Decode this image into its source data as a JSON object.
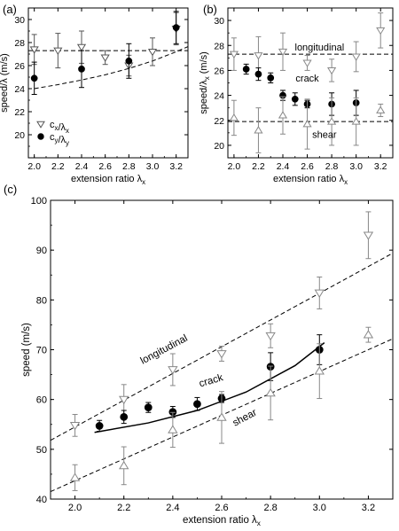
{
  "chart_data": [
    {
      "panel": "(a)",
      "type": "scatter",
      "xlabel": "extension ratio λ",
      "xlabel_sub": "x",
      "ylabel": "speed/λ (m/s)",
      "xlim": [
        1.95,
        3.3
      ],
      "ylim": [
        18,
        31
      ],
      "xticks": [
        2.0,
        2.2,
        2.4,
        2.6,
        2.8,
        3.0,
        3.2
      ],
      "yticks": [
        20,
        22,
        24,
        26,
        28,
        30
      ],
      "legend_position": "lower-left",
      "series": [
        {
          "name": "c_x/λ_x",
          "marker": "triangle-down-open",
          "color": "#555555",
          "points": [
            {
              "x": 2.0,
              "y": 27.4,
              "err": 1.3
            },
            {
              "x": 2.2,
              "y": 27.3,
              "err": 1.5
            },
            {
              "x": 2.4,
              "y": 27.6,
              "err": 1.4
            },
            {
              "x": 2.6,
              "y": 26.7,
              "err": 0.6
            },
            {
              "x": 2.8,
              "y": 26.0,
              "err": 0.9
            },
            {
              "x": 3.0,
              "y": 27.2,
              "err": 1.2
            },
            {
              "x": 3.2,
              "y": 29.2,
              "err": 1.4
            }
          ]
        },
        {
          "name": "c_y/λ_y",
          "marker": "circle-filled",
          "color": "#000000",
          "points": [
            {
              "x": 2.0,
              "y": 24.9,
              "err": 1.4
            },
            {
              "x": 2.4,
              "y": 25.7,
              "err": 1.6
            },
            {
              "x": 2.8,
              "y": 26.4,
              "err": 1.5
            },
            {
              "x": 3.2,
              "y": 29.3,
              "err": 1.4
            }
          ]
        }
      ],
      "reference_lines": [
        {
          "style": "dashed",
          "kind": "horizontal",
          "y": 27.3
        },
        {
          "style": "dashed",
          "kind": "curve",
          "x": [
            2.0,
            2.2,
            2.4,
            2.6,
            2.8,
            3.0,
            3.2,
            3.3
          ],
          "y": [
            24.0,
            24.35,
            24.75,
            25.2,
            25.75,
            26.4,
            27.2,
            27.65
          ]
        }
      ]
    },
    {
      "panel": "(b)",
      "type": "scatter",
      "xlabel": "extension ratio λ",
      "xlabel_sub": "x",
      "ylabel": "speed/λ",
      "ylabel_sub": "x",
      "ylabel_unit": " (m/s)",
      "xlim": [
        1.95,
        3.3
      ],
      "ylim": [
        19,
        31
      ],
      "xticks": [
        2.0,
        2.2,
        2.4,
        2.6,
        2.8,
        3.0,
        3.2
      ],
      "yticks": [
        20,
        22,
        24,
        26,
        28,
        30
      ],
      "annotations": [
        {
          "text": "longitudinal",
          "x": 2.7,
          "y": 27.6
        },
        {
          "text": "crack",
          "x": 2.6,
          "y": 25.1
        },
        {
          "text": "shear",
          "x": 2.74,
          "y": 20.6
        }
      ],
      "series": [
        {
          "name": "longitudinal",
          "marker": "triangle-down-open",
          "color": "#888888",
          "points": [
            {
              "x": 2.0,
              "y": 27.3,
              "err": 1.3
            },
            {
              "x": 2.2,
              "y": 27.2,
              "err": 1.5
            },
            {
              "x": 2.4,
              "y": 27.5,
              "err": 1.5
            },
            {
              "x": 2.6,
              "y": 26.6,
              "err": 0.6
            },
            {
              "x": 2.8,
              "y": 26.0,
              "err": 0.9
            },
            {
              "x": 3.0,
              "y": 27.1,
              "err": 1.2
            },
            {
              "x": 3.2,
              "y": 29.2,
              "err": 1.4
            }
          ]
        },
        {
          "name": "crack",
          "marker": "circle-filled",
          "color": "#000000",
          "points": [
            {
              "x": 2.1,
              "y": 26.1,
              "err": 0.4
            },
            {
              "x": 2.2,
              "y": 25.7,
              "err": 0.5
            },
            {
              "x": 2.3,
              "y": 25.4,
              "err": 0.4
            },
            {
              "x": 2.4,
              "y": 24.0,
              "err": 0.4
            },
            {
              "x": 2.5,
              "y": 23.7,
              "err": 0.5
            },
            {
              "x": 2.6,
              "y": 23.3,
              "err": 0.3
            },
            {
              "x": 2.8,
              "y": 23.3,
              "err": 0.9
            },
            {
              "x": 3.0,
              "y": 23.4,
              "err": 1.0
            }
          ]
        },
        {
          "name": "shear",
          "marker": "triangle-up-open",
          "color": "#888888",
          "points": [
            {
              "x": 2.0,
              "y": 22.2,
              "err": 1.4
            },
            {
              "x": 2.2,
              "y": 21.2,
              "err": 1.8
            },
            {
              "x": 2.4,
              "y": 22.4,
              "err": 1.5
            },
            {
              "x": 2.6,
              "y": 21.7,
              "err": 2.0
            },
            {
              "x": 2.8,
              "y": 21.9,
              "err": 1.9
            },
            {
              "x": 3.0,
              "y": 21.9,
              "err": 1.9
            },
            {
              "x": 3.2,
              "y": 22.8,
              "err": 0.5
            }
          ]
        }
      ],
      "reference_lines": [
        {
          "style": "dashed",
          "kind": "horizontal",
          "y": 27.3
        },
        {
          "style": "dashed",
          "kind": "horizontal",
          "y": 21.9
        }
      ]
    },
    {
      "panel": "(c)",
      "type": "scatter",
      "xlabel": "extension ratio λ",
      "xlabel_sub": "x",
      "ylabel": "speed (m/s)",
      "xlim": [
        1.9,
        3.3
      ],
      "ylim": [
        40,
        100
      ],
      "xticks": [
        2.0,
        2.2,
        2.4,
        2.6,
        2.8,
        3.0,
        3.2
      ],
      "yticks": [
        40,
        50,
        60,
        70,
        80,
        90,
        100
      ],
      "annotations": [
        {
          "text": "longitudinal",
          "x": 2.37,
          "y": 69.5,
          "rotate": -28
        },
        {
          "text": "crack",
          "x": 2.56,
          "y": 63.2,
          "rotate": -16
        },
        {
          "text": "shear",
          "x": 2.7,
          "y": 55.8,
          "rotate": -28
        }
      ],
      "series": [
        {
          "name": "longitudinal",
          "marker": "triangle-down-open",
          "color": "#888888",
          "points": [
            {
              "x": 2.0,
              "y": 54.8,
              "err": 2.2
            },
            {
              "x": 2.2,
              "y": 60.0,
              "err": 3.0
            },
            {
              "x": 2.4,
              "y": 66.0,
              "err": 3.2
            },
            {
              "x": 2.6,
              "y": 69.2,
              "err": 1.5
            },
            {
              "x": 2.8,
              "y": 72.8,
              "err": 2.4
            },
            {
              "x": 3.0,
              "y": 81.4,
              "err": 3.2
            },
            {
              "x": 3.2,
              "y": 93.0,
              "err": 4.7
            }
          ]
        },
        {
          "name": "crack",
          "marker": "circle-filled",
          "color": "#000000",
          "points": [
            {
              "x": 2.1,
              "y": 54.7,
              "err": 1.1
            },
            {
              "x": 2.2,
              "y": 56.5,
              "err": 1.3
            },
            {
              "x": 2.3,
              "y": 58.4,
              "err": 1.0
            },
            {
              "x": 2.4,
              "y": 57.5,
              "err": 1.1
            },
            {
              "x": 2.5,
              "y": 59.1,
              "err": 1.3
            },
            {
              "x": 2.6,
              "y": 60.2,
              "err": 0.8
            },
            {
              "x": 2.8,
              "y": 66.6,
              "err": 2.8
            },
            {
              "x": 3.0,
              "y": 70.0,
              "err": 3.0
            }
          ]
        },
        {
          "name": "shear",
          "marker": "triangle-up-open",
          "color": "#888888",
          "points": [
            {
              "x": 2.0,
              "y": 44.3,
              "err": 2.6
            },
            {
              "x": 2.2,
              "y": 46.7,
              "err": 3.8
            },
            {
              "x": 2.4,
              "y": 53.9,
              "err": 3.5
            },
            {
              "x": 2.6,
              "y": 56.4,
              "err": 5.2
            },
            {
              "x": 2.8,
              "y": 61.3,
              "err": 5.4
            },
            {
              "x": 3.0,
              "y": 65.7,
              "err": 5.5
            },
            {
              "x": 3.2,
              "y": 73.0,
              "err": 1.5
            }
          ]
        }
      ],
      "reference_lines": [
        {
          "style": "dashed",
          "x": [
            1.9,
            3.3
          ],
          "y": [
            51.8,
            89.4
          ]
        },
        {
          "style": "dashed",
          "x": [
            1.9,
            3.3
          ],
          "y": [
            41.5,
            72.2
          ]
        },
        {
          "style": "solid",
          "x": [
            2.08,
            2.3,
            2.5,
            2.7,
            2.9,
            3.02
          ],
          "y": [
            53.4,
            55.3,
            57.8,
            61.5,
            66.8,
            71.4
          ]
        }
      ]
    }
  ]
}
